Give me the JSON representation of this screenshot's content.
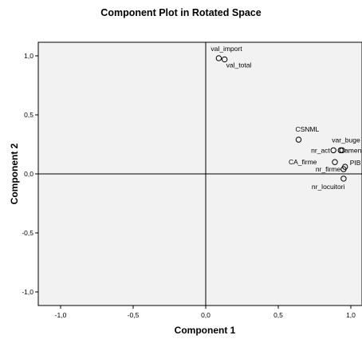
{
  "chart_data": {
    "type": "scatter",
    "title": "Component Plot in Rotated Space",
    "xlabel": "Component 1",
    "ylabel": "Component 2",
    "xlim": [
      -1.05,
      1.05
    ],
    "ylim": [
      -1.05,
      1.05
    ],
    "x_ticks": [
      "-1,0",
      "-0,5",
      "0,0",
      "0,5",
      "1,0"
    ],
    "y_ticks": [
      "1,0",
      "0,5",
      "0,0",
      "-0,5",
      "-1,0"
    ],
    "x_tick_values": [
      -1.0,
      -0.5,
      0.0,
      0.5,
      1.0
    ],
    "y_tick_values": [
      1.0,
      0.5,
      0.0,
      -0.5,
      -1.0
    ],
    "reference_lines": {
      "x": 0.0,
      "y": 0.0
    },
    "grid": false,
    "plot_background": "#f2f2f2",
    "marker": "open-circle",
    "points": [
      {
        "label": "val_import",
        "x": 0.09,
        "y": 0.98
      },
      {
        "label": "val_total",
        "x": 0.13,
        "y": 0.97
      },
      {
        "label": "CSNML",
        "x": 0.64,
        "y": 0.29
      },
      {
        "label": "var_buge",
        "x": 0.93,
        "y": 0.2
      },
      {
        "label": "nr_act",
        "x": 0.88,
        "y": 0.2
      },
      {
        "label": "amenz",
        "x": 0.94,
        "y": 0.2
      },
      {
        "label": "CA_firme",
        "x": 0.89,
        "y": 0.1
      },
      {
        "label": "PIB",
        "x": 0.96,
        "y": 0.06
      },
      {
        "label": "nr_firme",
        "x": 0.95,
        "y": 0.04
      },
      {
        "label": "nr_locuitori",
        "x": 0.95,
        "y": -0.04
      }
    ]
  }
}
